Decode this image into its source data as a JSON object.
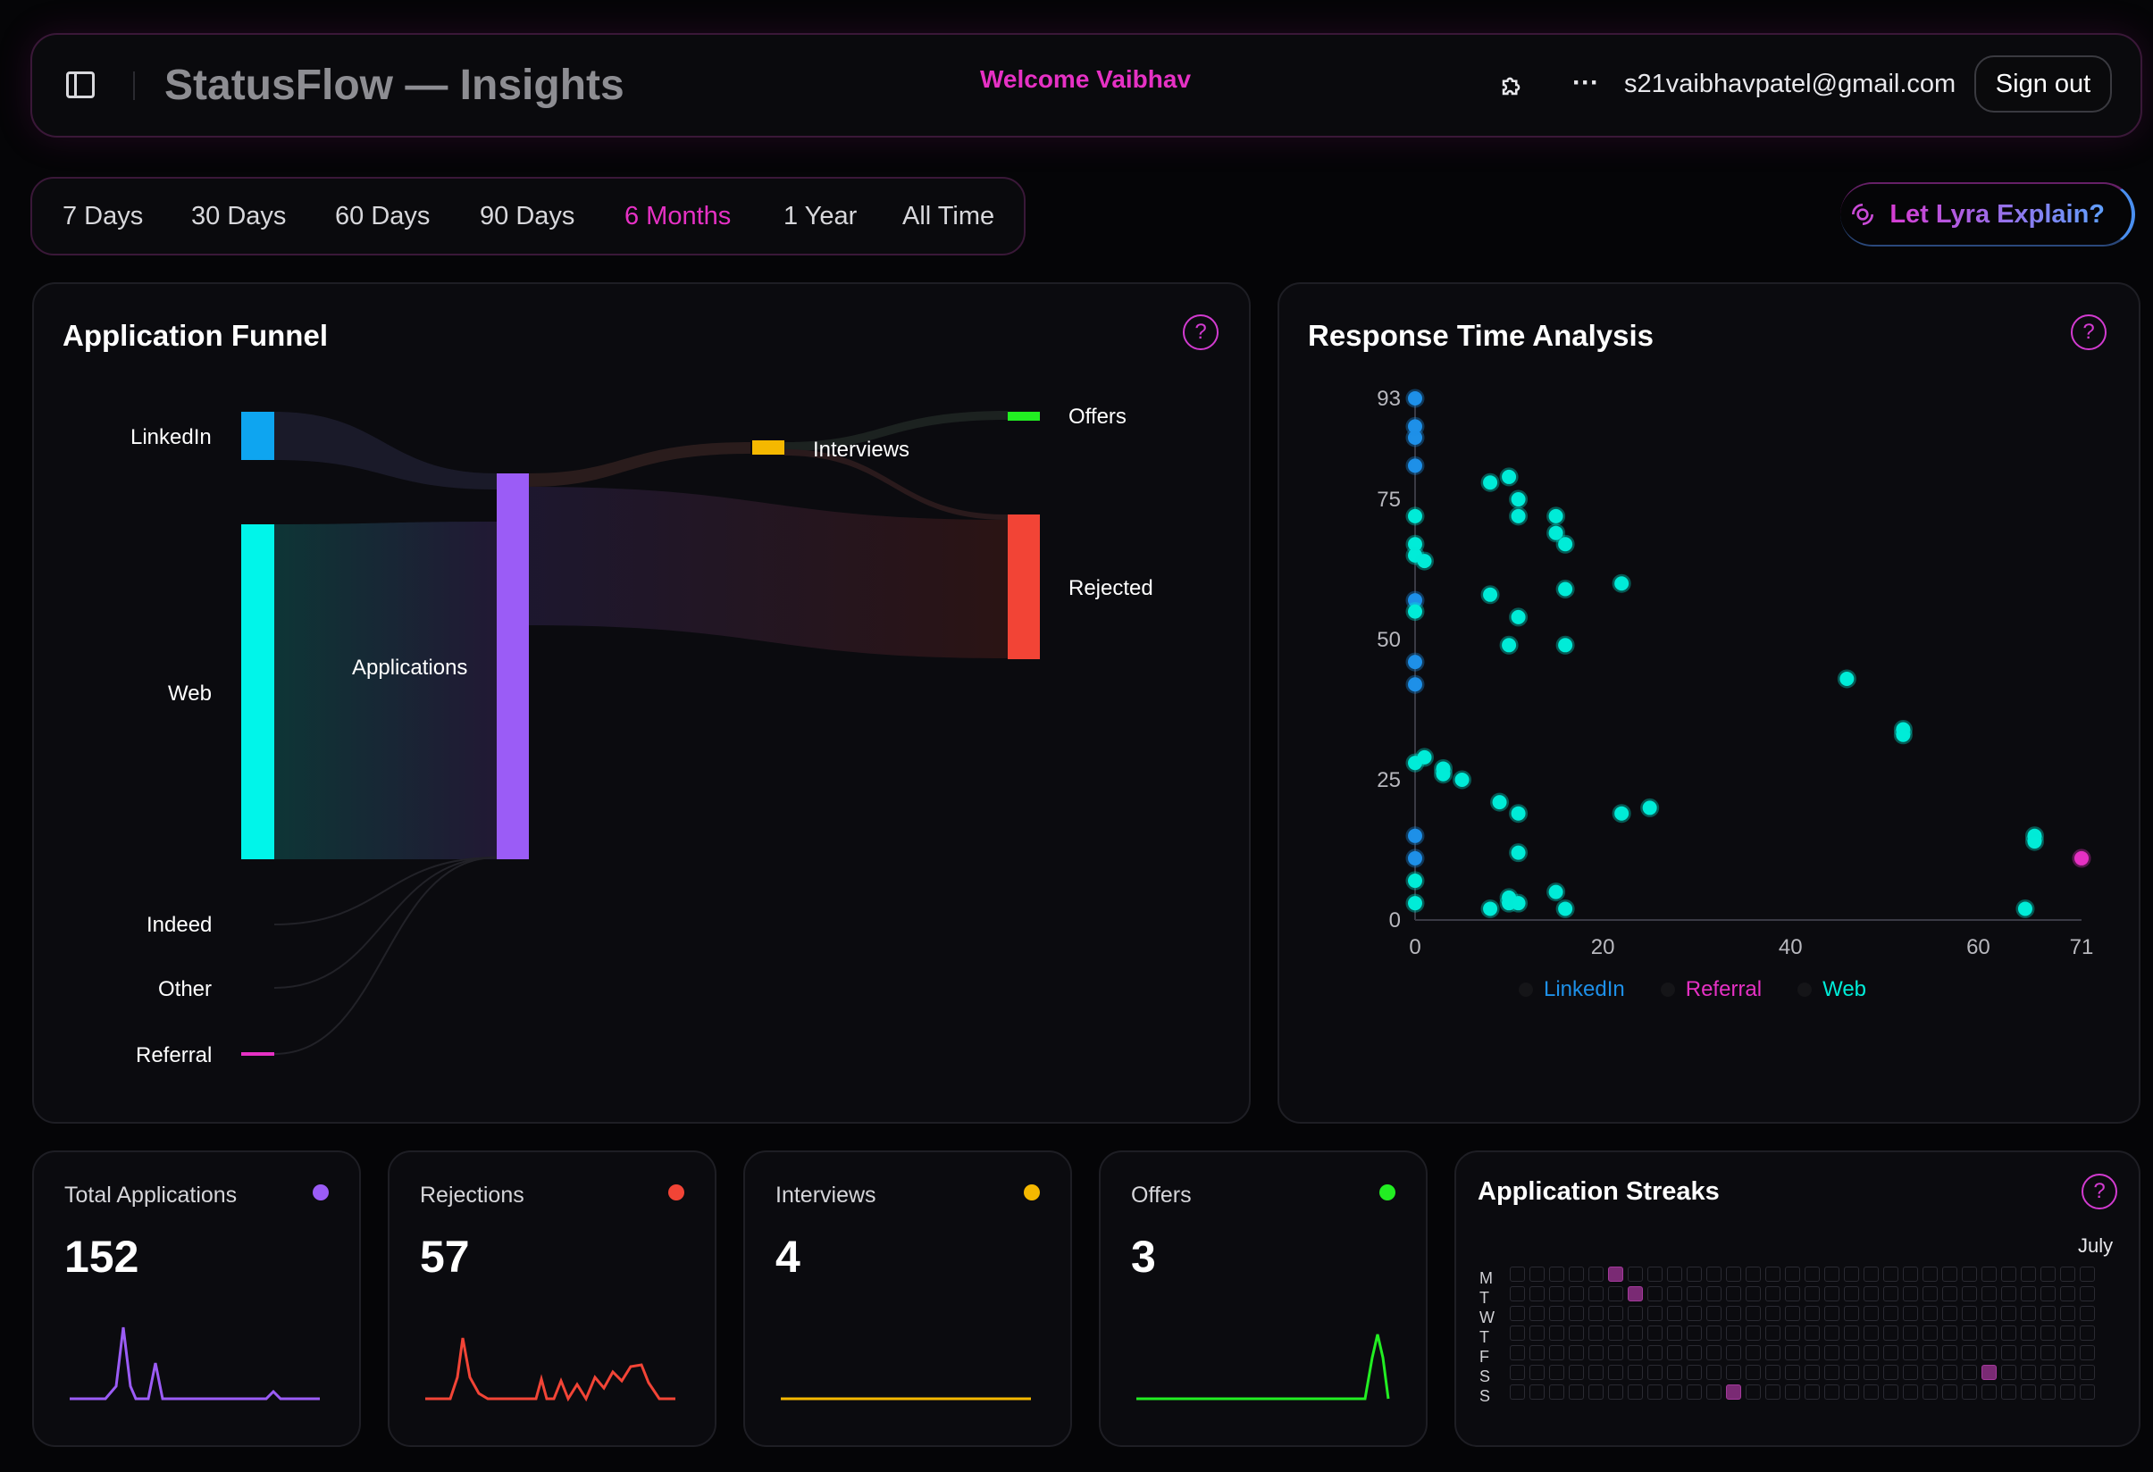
{
  "header": {
    "title": "StatusFlow — Insights",
    "welcome": "Welcome Vaibhav",
    "email": "s21vaibhavpatel@gmail.com",
    "signout_label": "Sign out"
  },
  "ranges": [
    "7 Days",
    "30 Days",
    "60 Days",
    "90 Days",
    "6 Months",
    "1 Year",
    "All Time"
  ],
  "active_range": "6 Months",
  "lyra_label": "Let Lyra Explain?",
  "funnel": {
    "title": "Application Funnel",
    "help": "?",
    "labels": {
      "linkedin": "LinkedIn",
      "web": "Web",
      "indeed": "Indeed",
      "other": "Other",
      "referral": "Referral",
      "applications": "Applications",
      "interviews": "Interviews",
      "offers": "Offers",
      "rejected": "Rejected"
    },
    "colors": {
      "linkedin": "#0ea5f0",
      "web": "#00f5ea",
      "referral": "#e631c4",
      "applications": "#9b5cf6",
      "interviews": "#f5b800",
      "offers": "#22ee22",
      "rejected": "#f24436"
    }
  },
  "response": {
    "title": "Response Time Analysis",
    "help": "?",
    "legend": [
      "LinkedIn",
      "Referral",
      "Web"
    ],
    "colors": {
      "LinkedIn": "#1e90e8",
      "Referral": "#e631c4",
      "Web": "#00ecd8"
    }
  },
  "chart_data": {
    "type": "scatter",
    "title": "Response Time Analysis",
    "xlim": [
      0,
      71
    ],
    "ylim": [
      0,
      93
    ],
    "xticks": [
      0,
      20,
      40,
      60,
      71
    ],
    "yticks": [
      0,
      25,
      50,
      75,
      93
    ],
    "series": [
      {
        "name": "LinkedIn",
        "points": [
          [
            0,
            86
          ],
          [
            0,
            81
          ],
          [
            0,
            57
          ],
          [
            0,
            46
          ],
          [
            0,
            42
          ],
          [
            0,
            15
          ],
          [
            0,
            11
          ],
          [
            0,
            93
          ],
          [
            0,
            88
          ]
        ]
      },
      {
        "name": "Referral",
        "points": [
          [
            71,
            11
          ]
        ]
      },
      {
        "name": "Web",
        "points": [
          [
            0,
            72
          ],
          [
            0,
            67
          ],
          [
            0,
            65
          ],
          [
            0,
            55
          ],
          [
            0,
            28
          ],
          [
            0,
            7
          ],
          [
            0,
            3
          ],
          [
            1,
            29
          ],
          [
            1,
            64
          ],
          [
            3,
            27
          ],
          [
            3,
            26
          ],
          [
            5,
            25
          ],
          [
            8,
            78
          ],
          [
            8,
            58
          ],
          [
            8,
            2
          ],
          [
            9,
            21
          ],
          [
            10,
            79
          ],
          [
            10,
            49
          ],
          [
            10,
            4
          ],
          [
            10,
            3
          ],
          [
            11,
            75
          ],
          [
            11,
            72
          ],
          [
            11,
            54
          ],
          [
            11,
            19
          ],
          [
            11,
            12
          ],
          [
            11,
            3
          ],
          [
            15,
            72
          ],
          [
            15,
            69
          ],
          [
            15,
            5
          ],
          [
            16,
            67
          ],
          [
            16,
            59
          ],
          [
            16,
            49
          ],
          [
            16,
            2
          ],
          [
            22,
            60
          ],
          [
            22,
            19
          ],
          [
            25,
            20
          ],
          [
            46,
            43
          ],
          [
            52,
            34
          ],
          [
            52,
            33
          ],
          [
            66,
            15
          ],
          [
            66,
            14
          ],
          [
            65,
            2
          ]
        ]
      }
    ]
  },
  "stats": [
    {
      "label": "Total Applications",
      "value": "152",
      "color": "#9b5cf6"
    },
    {
      "label": "Rejections",
      "value": "57",
      "color": "#f24436"
    },
    {
      "label": "Interviews",
      "value": "4",
      "color": "#f5b800"
    },
    {
      "label": "Offers",
      "value": "3",
      "color": "#22ee22"
    }
  ],
  "streaks": {
    "title": "Application Streaks",
    "help": "?",
    "month": "July",
    "days": [
      "M",
      "T",
      "W",
      "T",
      "F",
      "S",
      "S"
    ],
    "active": [
      [
        0,
        5
      ],
      [
        1,
        6
      ],
      [
        6,
        11
      ],
      [
        5,
        24
      ]
    ]
  }
}
